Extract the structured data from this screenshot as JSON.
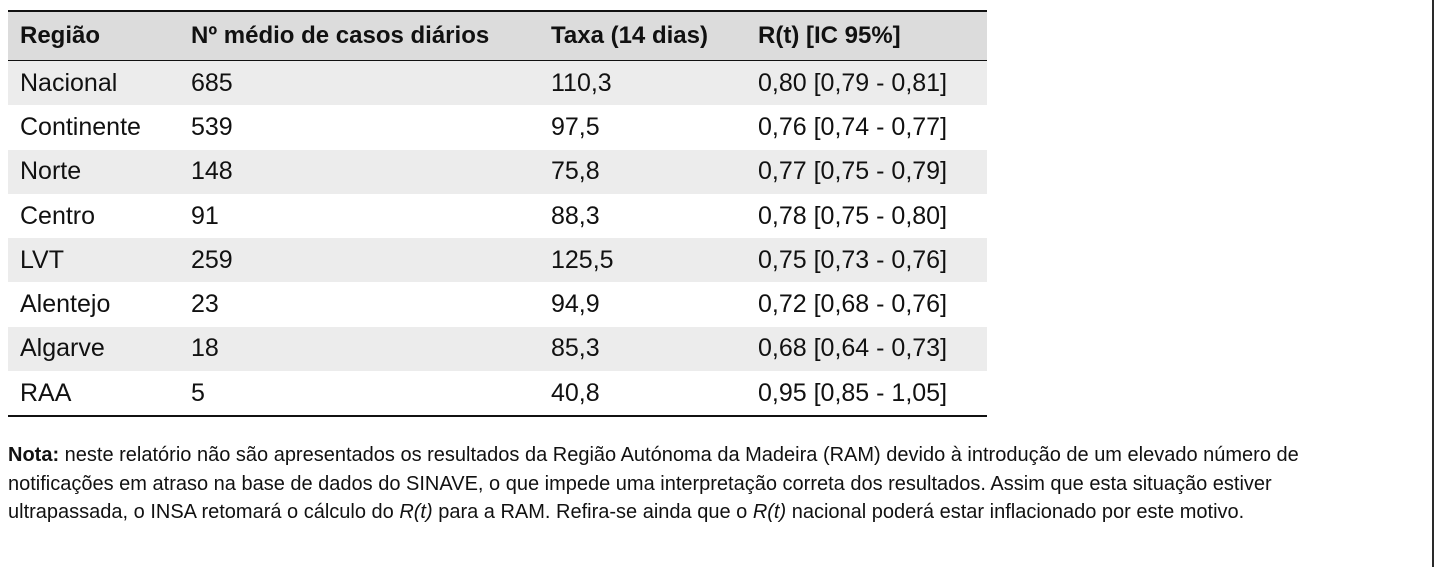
{
  "table": {
    "headers": [
      "Região",
      "Nº médio de casos diários",
      "Taxa (14 dias)",
      "R(t) [IC 95%]"
    ],
    "rows": [
      [
        "Nacional",
        "685",
        "110,3",
        "0,80 [0,79 - 0,81]"
      ],
      [
        "Continente",
        "539",
        "97,5",
        "0,76 [0,74 - 0,77]"
      ],
      [
        "Norte",
        "148",
        "75,8",
        "0,77 [0,75 - 0,79]"
      ],
      [
        "Centro",
        "91",
        "88,3",
        "0,78 [0,75 - 0,80]"
      ],
      [
        "LVT",
        "259",
        "125,5",
        "0,75 [0,73 - 0,76]"
      ],
      [
        "Alentejo",
        "23",
        "94,9",
        "0,72 [0,68 - 0,76]"
      ],
      [
        "Algarve",
        "18",
        "85,3",
        "0,68 [0,64 - 0,73]"
      ],
      [
        "RAA",
        "5",
        "40,8",
        "0,95 [0,85 - 1,05]"
      ]
    ]
  },
  "note": {
    "label": "Nota:",
    "text_1": " neste relatório não são apresentados os resultados da Região Autónoma da Madeira (RAM) devido à introdução de um elevado número de notificações em atraso na base de dados do SINAVE, o que impede uma interpretação correta dos resultados. Assim que esta situação estiver ultrapassada, o INSA retomará o cálculo do ",
    "rt_1": "R(t)",
    "text_2": " para a RAM. Refira-se ainda que o ",
    "rt_2": "R(t)",
    "text_3": " nacional poderá estar inflacionado por este motivo."
  }
}
